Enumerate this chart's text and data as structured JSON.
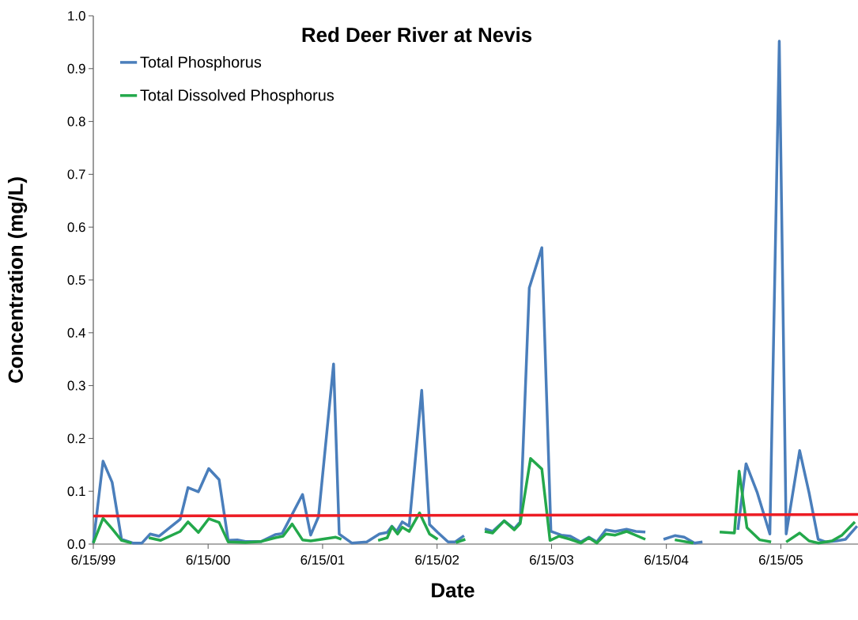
{
  "chart_data": {
    "type": "line",
    "title": "Red Deer River at Nevis",
    "xlabel": "Date",
    "ylabel": "Concentration (mg/L)",
    "xlim": [
      "1999-06-15",
      "2006-02-16"
    ],
    "ylim": [
      0,
      1
    ],
    "xticks": [
      {
        "value": "1999-06-15",
        "label": "6/15/99"
      },
      {
        "value": "2000-06-15",
        "label": "6/15/00"
      },
      {
        "value": "2001-06-15",
        "label": "6/15/01"
      },
      {
        "value": "2002-06-15",
        "label": "6/15/02"
      },
      {
        "value": "2003-06-15",
        "label": "6/15/03"
      },
      {
        "value": "2004-06-15",
        "label": "6/15/04"
      },
      {
        "value": "2005-06-15",
        "label": "6/15/05"
      }
    ],
    "yticks": [
      {
        "value": 0,
        "label": "0.0"
      },
      {
        "value": 0.1,
        "label": "0.1"
      },
      {
        "value": 0.2,
        "label": "0.2"
      },
      {
        "value": 0.3,
        "label": "0.3"
      },
      {
        "value": 0.4,
        "label": "0.4"
      },
      {
        "value": 0.5,
        "label": "0.5"
      },
      {
        "value": 0.6,
        "label": "0.6"
      },
      {
        "value": 0.7,
        "label": "0.7"
      },
      {
        "value": 0.8,
        "label": "0.8"
      },
      {
        "value": 0.9,
        "label": "0.9"
      },
      {
        "value": 1,
        "label": "1.0"
      }
    ],
    "legend": "top left",
    "series": [
      {
        "name": "Total Phosphorus",
        "color": "#4a7ebb",
        "x": [
          "1999-06-15",
          "1999-07-16",
          "1999-08-14",
          "1999-09-13",
          "1999-10-19",
          "1999-11-17",
          "1999-12-13",
          "2000-01-11",
          "2000-03-18",
          "2000-04-12",
          "2000-05-15",
          "2000-06-17",
          "2000-07-20",
          "2000-08-18",
          "2000-09-16",
          "2000-10-12",
          "2000-12-02",
          "2001-01-15",
          "2001-02-06",
          "2001-04-12",
          "2001-05-08",
          "2001-06-02",
          "2001-07-20",
          "2001-08-07",
          "2001-09-16",
          "2001-11-03",
          "2001-12-13",
          "2002-01-07",
          "2002-01-22",
          "2002-02-06",
          "2002-02-24",
          "2002-03-18",
          "2002-04-27",
          "2002-05-22",
          "2002-06-17",
          "2002-07-20",
          "2002-08-11",
          "2002-09-09",
          "2002-10-12",
          "2002-11-14",
          "2002-12-09",
          "2003-01-15",
          "2003-02-16",
          "2003-03-07",
          "2003-04-05",
          "2003-05-15",
          "2003-06-13",
          "2003-07-16",
          "2003-08-14",
          "2003-09-16",
          "2003-10-12",
          "2003-11-06",
          "2003-12-05",
          "2004-01-04",
          "2004-02-09",
          "2004-03-10",
          "2004-04-09",
          "2004-05-08",
          "2004-06-06",
          "2004-07-12",
          "2004-08-11",
          "2004-09-13",
          "2004-10-08",
          "2004-12-02",
          "2005-01-29",
          "2005-02-24",
          "2005-04-01",
          "2005-05-11",
          "2005-06-10",
          "2005-07-02",
          "2005-08-14",
          "2005-09-13",
          "2005-10-12",
          "2005-11-06",
          "2005-12-09",
          "2006-01-07",
          "2006-02-13"
        ],
        "values": [
          0.002,
          0.157,
          0.117,
          0.009,
          0.002,
          0.002,
          0.019,
          0.015,
          0.047,
          0.107,
          0.099,
          0.143,
          0.122,
          0.007,
          0.008,
          0.005,
          0.005,
          0.018,
          0.02,
          0.094,
          0.017,
          0.052,
          0.341,
          0.019,
          0.002,
          0.004,
          0.019,
          0.022,
          0.034,
          0.024,
          0.042,
          0.034,
          0.291,
          0.037,
          0.022,
          0.004,
          0.004,
          0.016,
          null,
          0.029,
          0.024,
          0.044,
          0.029,
          0.042,
          0.485,
          0.561,
          0.024,
          0.017,
          0.015,
          0.004,
          0.013,
          0.004,
          0.027,
          0.024,
          0.028,
          0.024,
          0.023,
          null,
          0.009,
          0.016,
          0.013,
          0.002,
          0.004,
          null,
          0.027,
          0.152,
          0.097,
          0.019,
          0.952,
          0.019,
          0.177,
          0.097,
          0.009,
          0.004,
          0.006,
          0.009,
          0.034
        ]
      },
      {
        "name": "Total Dissolved Phosphorus",
        "color": "#23a84b",
        "x": [
          "1999-06-15",
          "1999-07-16",
          "1999-08-14",
          "1999-09-13",
          "1999-10-15",
          "1999-11-14",
          "1999-12-09",
          "2000-01-15",
          "2000-03-18",
          "2000-04-12",
          "2000-05-15",
          "2000-06-17",
          "2000-07-20",
          "2000-08-18",
          "2000-10-12",
          "2000-12-02",
          "2001-01-15",
          "2001-02-09",
          "2001-03-10",
          "2001-04-12",
          "2001-05-08",
          "2001-07-27",
          "2001-08-14",
          "2001-10-12",
          "2001-12-09",
          "2002-01-07",
          "2002-01-22",
          "2002-02-09",
          "2002-02-24",
          "2002-03-18",
          "2002-04-20",
          "2002-05-22",
          "2002-06-17",
          "2002-07-16",
          "2002-08-14",
          "2002-09-13",
          "2002-10-12",
          "2002-11-14",
          "2002-12-09",
          "2003-01-15",
          "2003-02-16",
          "2003-03-07",
          "2003-04-09",
          "2003-05-15",
          "2003-06-10",
          "2003-07-09",
          "2003-08-14",
          "2003-09-16",
          "2003-10-12",
          "2003-11-06",
          "2003-12-05",
          "2004-01-04",
          "2004-02-09",
          "2004-04-09",
          "2004-05-26",
          "2004-07-12",
          "2004-09-09",
          "2004-10-19",
          "2004-12-02",
          "2005-01-18",
          "2005-02-02",
          "2005-02-27",
          "2005-04-09",
          "2005-05-15",
          "2005-06-10",
          "2005-07-02",
          "2005-08-14",
          "2005-09-13",
          "2005-10-12",
          "2005-11-25",
          "2005-12-27",
          "2006-02-06"
        ],
        "values": [
          0.002,
          0.049,
          0.029,
          0.007,
          0.002,
          null,
          0.012,
          0.007,
          0.024,
          0.042,
          0.022,
          0.048,
          0.041,
          0.004,
          0.003,
          0.005,
          0.012,
          0.015,
          0.038,
          0.008,
          0.006,
          0.013,
          0.009,
          null,
          0.007,
          0.012,
          0.033,
          0.019,
          0.032,
          0.024,
          0.059,
          0.019,
          0.009,
          null,
          0.003,
          0.009,
          null,
          0.024,
          0.021,
          0.044,
          0.027,
          0.039,
          0.162,
          0.142,
          0.007,
          0.015,
          0.009,
          0.002,
          0.012,
          0.002,
          0.019,
          0.017,
          0.024,
          0.009,
          null,
          0.008,
          0.002,
          null,
          0.023,
          0.021,
          0.138,
          0.031,
          0.008,
          0.004,
          null,
          0.004,
          0.021,
          0.006,
          0.002,
          0.006,
          0.017,
          0.042
        ]
      },
      {
        "type": "line",
        "color": "#ed1c24",
        "x": [
          "1999-06-15",
          "2006-02-16"
        ],
        "values": [
          0.053,
          0.056
        ]
      }
    ]
  }
}
